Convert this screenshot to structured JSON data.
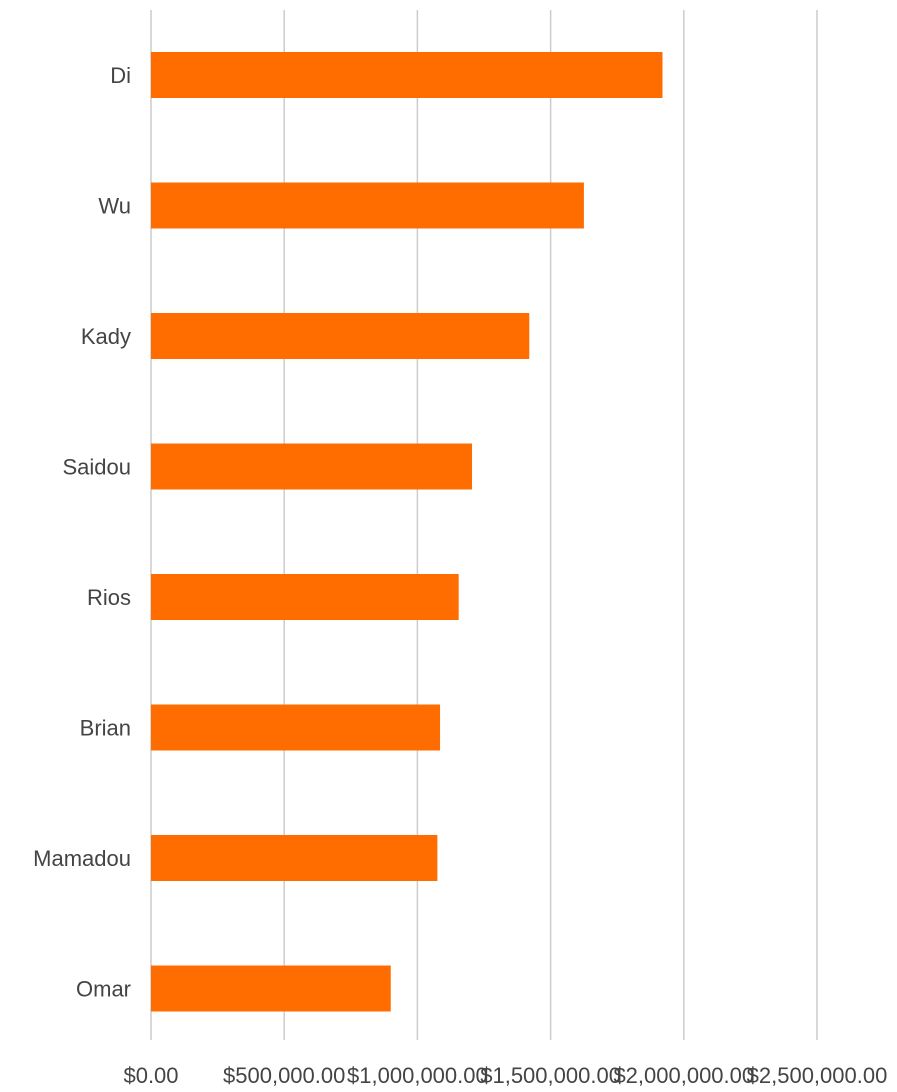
{
  "chart_data": {
    "type": "bar",
    "orientation": "horizontal",
    "title": "",
    "xlabel": "",
    "ylabel": "",
    "categories": [
      "Di",
      "Wu",
      "Kady",
      "Saidou",
      "Rios",
      "Brian",
      "Mamadou",
      "Omar"
    ],
    "values": [
      1920000,
      1625000,
      1420000,
      1205000,
      1155000,
      1085000,
      1075000,
      900000
    ],
    "xlim": [
      0,
      2500000
    ],
    "ticks": [
      0,
      500000,
      1000000,
      1500000,
      2000000,
      2500000
    ],
    "tick_labels": [
      "$0.00",
      "$500,000.00",
      "$1,000,000.00",
      "$1,500,000.00",
      "$2,000,000.00",
      "$2,500,000.00"
    ],
    "grid": true,
    "legend": "none",
    "bar_color": "#ff6d00",
    "grid_color": "#cccccc",
    "text_color": "#444444"
  }
}
